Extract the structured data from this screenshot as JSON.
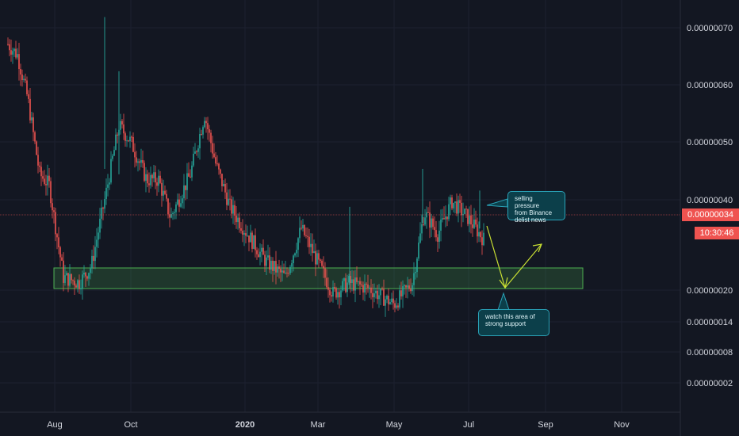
{
  "chart_data": {
    "type": "candlestick",
    "x_ticks": [
      "Aug",
      "Oct",
      "2020",
      "Mar",
      "May",
      "Jul",
      "Sep",
      "Nov"
    ],
    "y_ticks": [
      "0.00000070",
      "0.00000060",
      "0.00000050",
      "0.00000040",
      "0.00000020",
      "0.00000014",
      "0.00000008",
      "0.00000002"
    ],
    "current_price": "0.00000034",
    "countdown": "10:30:46",
    "series": [
      {
        "date": "Jun 2019",
        "close": 70
      },
      {
        "date": "Jul 2019",
        "close": 48
      },
      {
        "date": "Aug 2019",
        "close": 25
      },
      {
        "date": "Sep 2019",
        "close": 42
      },
      {
        "date": "Oct 2019",
        "close": 52
      },
      {
        "date": "Nov 2019",
        "close": 42
      },
      {
        "date": "Dec 2019",
        "close": 55
      },
      {
        "date": "Jan 2020",
        "close": 38
      },
      {
        "date": "Feb 2020",
        "close": 34
      },
      {
        "date": "Mar 2020",
        "close": 27
      },
      {
        "date": "Apr 2020",
        "close": 26
      },
      {
        "date": "May 2020",
        "close": 23
      },
      {
        "date": "Jun 2020",
        "close": 39
      },
      {
        "date": "Jul 2020",
        "close": 34
      }
    ],
    "support_zone": {
      "from": "0.00000021",
      "to": "0.00000025"
    },
    "colors": {
      "up": "#26a69a",
      "down": "#ef5350",
      "support": "#4caf50",
      "arrow": "#c9e033",
      "price_line": "#ef5350",
      "grid": "#1c2030"
    }
  },
  "annotations": {
    "note1": {
      "lines": [
        "selling pressure",
        "from Binance",
        "delist news"
      ]
    },
    "note2": {
      "lines": [
        "watch this area of",
        "strong support"
      ]
    }
  }
}
